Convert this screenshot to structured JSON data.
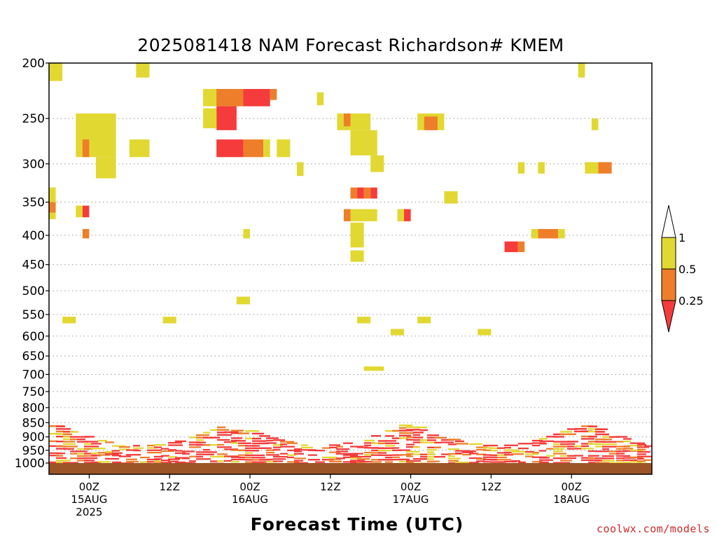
{
  "chart_data": {
    "type": "heatmap",
    "title": "2025081418 NAM Forecast Richardson# KMEM",
    "xlabel": "Forecast Time (UTC)",
    "ylabel": "",
    "y_scale": "log-pressure (inverted)",
    "ylim_hpa": [
      1000,
      200
    ],
    "y_ticks": [
      200,
      250,
      300,
      350,
      400,
      450,
      500,
      550,
      600,
      650,
      700,
      750,
      800,
      850,
      900,
      950,
      1000
    ],
    "x_ticks": [
      {
        "time": "2025-08-15T00Z",
        "label1": "00Z",
        "label2": "15AUG",
        "label3": "2025"
      },
      {
        "time": "2025-08-15T12Z",
        "label1": "12Z",
        "label2": "",
        "label3": ""
      },
      {
        "time": "2025-08-16T00Z",
        "label1": "00Z",
        "label2": "16AUG",
        "label3": ""
      },
      {
        "time": "2025-08-16T12Z",
        "label1": "12Z",
        "label2": "",
        "label3": ""
      },
      {
        "time": "2025-08-17T00Z",
        "label1": "00Z",
        "label2": "17AUG",
        "label3": ""
      },
      {
        "time": "2025-08-17T12Z",
        "label1": "12Z",
        "label2": "",
        "label3": ""
      },
      {
        "time": "2025-08-18T00Z",
        "label1": "00Z",
        "label2": "18AUG",
        "label3": ""
      }
    ],
    "x_start": "2025-08-14T18Z",
    "x_end": "2025-08-18T12Z",
    "grid": "dotted horizontal lines at pressure ticks",
    "legend": {
      "placement": "right",
      "labels": [
        "1",
        "0.5",
        "0.25"
      ],
      "bins": [
        {
          "range": "0.5-1",
          "color": "#e2d832"
        },
        {
          "range": "0.25-0.5",
          "color": "#ee7e2a"
        },
        {
          "range": "<0.25",
          "color": "#f53b3b"
        }
      ]
    },
    "colors": {
      "low": "#f53b3b",
      "mid": "#ee7e2a",
      "high": "#e2d832",
      "ground": "#9b5527"
    },
    "cells": [
      {
        "t0": "2025-08-14T18Z",
        "t1": "2025-08-14T20Z",
        "p0": 200,
        "p1": 215,
        "bin": "high"
      },
      {
        "t0": "2025-08-15T07Z",
        "t1": "2025-08-15T09Z",
        "p0": 200,
        "p1": 212,
        "bin": "high"
      },
      {
        "t0": "2025-08-15T17Z",
        "t1": "2025-08-15T22Z",
        "p0": 222,
        "p1": 238,
        "bin": "high"
      },
      {
        "t0": "2025-08-15T19Z",
        "t1": "2025-08-15T23Z",
        "p0": 222,
        "p1": 238,
        "bin": "mid"
      },
      {
        "t0": "2025-08-15T23Z",
        "t1": "2025-08-16T03Z",
        "p0": 222,
        "p1": 238,
        "bin": "low"
      },
      {
        "t0": "2025-08-16T03Z",
        "t1": "2025-08-16T04Z",
        "p0": 222,
        "p1": 232,
        "bin": "mid"
      },
      {
        "t0": "2025-08-15T19Z",
        "t1": "2025-08-15T22Z",
        "p0": 238,
        "p1": 262,
        "bin": "low"
      },
      {
        "t0": "2025-08-15T17Z",
        "t1": "2025-08-15T19Z",
        "p0": 240,
        "p1": 260,
        "bin": "high"
      },
      {
        "t0": "2025-08-15T19Z",
        "t1": "2025-08-15T23Z",
        "p0": 272,
        "p1": 292,
        "bin": "low"
      },
      {
        "t0": "2025-08-15T23Z",
        "t1": "2025-08-16T02Z",
        "p0": 272,
        "p1": 292,
        "bin": "mid"
      },
      {
        "t0": "2025-08-16T02Z",
        "t1": "2025-08-16T03Z",
        "p0": 272,
        "p1": 292,
        "bin": "high"
      },
      {
        "t0": "2025-08-16T04Z",
        "t1": "2025-08-16T06Z",
        "p0": 272,
        "p1": 292,
        "bin": "high"
      },
      {
        "t0": "2025-08-16T07Z",
        "t1": "2025-08-16T08Z",
        "p0": 298,
        "p1": 315,
        "bin": "high"
      },
      {
        "t0": "2025-08-16T10Z",
        "t1": "2025-08-16T11Z",
        "p0": 225,
        "p1": 237,
        "bin": "high"
      },
      {
        "t0": "2025-08-14T22Z",
        "t1": "2025-08-15T04Z",
        "p0": 245,
        "p1": 292,
        "bin": "high"
      },
      {
        "t0": "2025-08-14T23Z",
        "t1": "2025-08-15T00Z",
        "p0": 272,
        "p1": 292,
        "bin": "mid"
      },
      {
        "t0": "2025-08-15T01Z",
        "t1": "2025-08-15T04Z",
        "p0": 292,
        "p1": 318,
        "bin": "high"
      },
      {
        "t0": "2025-08-15T06Z",
        "t1": "2025-08-15T09Z",
        "p0": 272,
        "p1": 292,
        "bin": "high"
      },
      {
        "t0": "2025-08-14T18Z",
        "t1": "2025-08-14T19Z",
        "p0": 330,
        "p1": 375,
        "bin": "high"
      },
      {
        "t0": "2025-08-14T18Z",
        "t1": "2025-08-14T19Z",
        "p0": 350,
        "p1": 365,
        "bin": "mid"
      },
      {
        "t0": "2025-08-14T22Z",
        "t1": "2025-08-14T23Z",
        "p0": 355,
        "p1": 372,
        "bin": "high"
      },
      {
        "t0": "2025-08-14T23Z",
        "t1": "2025-08-15T00Z",
        "p0": 355,
        "p1": 372,
        "bin": "low"
      },
      {
        "t0": "2025-08-14T23Z",
        "t1": "2025-08-15T00Z",
        "p0": 390,
        "p1": 405,
        "bin": "mid"
      },
      {
        "t0": "2025-08-15T23Z",
        "t1": "2025-08-16T00Z",
        "p0": 390,
        "p1": 405,
        "bin": "high"
      },
      {
        "t0": "2025-08-16T13Z",
        "t1": "2025-08-16T18Z",
        "p0": 245,
        "p1": 262,
        "bin": "high"
      },
      {
        "t0": "2025-08-16T14Z",
        "t1": "2025-08-16T15Z",
        "p0": 245,
        "p1": 258,
        "bin": "mid"
      },
      {
        "t0": "2025-08-16T15Z",
        "t1": "2025-08-16T19Z",
        "p0": 262,
        "p1": 290,
        "bin": "high"
      },
      {
        "t0": "2025-08-16T18Z",
        "t1": "2025-08-16T20Z",
        "p0": 290,
        "p1": 310,
        "bin": "high"
      },
      {
        "t0": "2025-08-16T15Z",
        "t1": "2025-08-16T16Z",
        "p0": 330,
        "p1": 345,
        "bin": "mid"
      },
      {
        "t0": "2025-08-16T16Z",
        "t1": "2025-08-16T17Z",
        "p0": 330,
        "p1": 345,
        "bin": "low"
      },
      {
        "t0": "2025-08-16T17Z",
        "t1": "2025-08-16T18Z",
        "p0": 330,
        "p1": 345,
        "bin": "mid"
      },
      {
        "t0": "2025-08-16T18Z",
        "t1": "2025-08-16T19Z",
        "p0": 330,
        "p1": 345,
        "bin": "low"
      },
      {
        "t0": "2025-08-16T14Z",
        "t1": "2025-08-16T15Z",
        "p0": 360,
        "p1": 378,
        "bin": "mid"
      },
      {
        "t0": "2025-08-16T15Z",
        "t1": "2025-08-16T16Z",
        "p0": 360,
        "p1": 378,
        "bin": "high"
      },
      {
        "t0": "2025-08-16T16Z",
        "t1": "2025-08-16T19Z",
        "p0": 360,
        "p1": 378,
        "bin": "high"
      },
      {
        "t0": "2025-08-16T15Z",
        "t1": "2025-08-16T17Z",
        "p0": 380,
        "p1": 420,
        "bin": "high"
      },
      {
        "t0": "2025-08-16T15Z",
        "t1": "2025-08-16T17Z",
        "p0": 425,
        "p1": 445,
        "bin": "high"
      },
      {
        "t0": "2025-08-16T22Z",
        "t1": "2025-08-16T23Z",
        "p0": 360,
        "p1": 378,
        "bin": "high"
      },
      {
        "t0": "2025-08-16T23Z",
        "t1": "2025-08-17T00Z",
        "p0": 360,
        "p1": 378,
        "bin": "low"
      },
      {
        "t0": "2025-08-17T01Z",
        "t1": "2025-08-17T05Z",
        "p0": 245,
        "p1": 262,
        "bin": "high"
      },
      {
        "t0": "2025-08-17T02Z",
        "t1": "2025-08-17T04Z",
        "p0": 248,
        "p1": 262,
        "bin": "mid"
      },
      {
        "t0": "2025-08-17T05Z",
        "t1": "2025-08-17T07Z",
        "p0": 335,
        "p1": 352,
        "bin": "high"
      },
      {
        "t0": "2025-08-17T16Z",
        "t1": "2025-08-17T17Z",
        "p0": 298,
        "p1": 312,
        "bin": "high"
      },
      {
        "t0": "2025-08-17T19Z",
        "t1": "2025-08-17T20Z",
        "p0": 298,
        "p1": 312,
        "bin": "high"
      },
      {
        "t0": "2025-08-18T01Z",
        "t1": "2025-08-18T02Z",
        "p0": 200,
        "p1": 212,
        "bin": "high"
      },
      {
        "t0": "2025-08-18T03Z",
        "t1": "2025-08-18T04Z",
        "p0": 250,
        "p1": 262,
        "bin": "high"
      },
      {
        "t0": "2025-08-18T04Z",
        "t1": "2025-08-18T06Z",
        "p0": 298,
        "p1": 312,
        "bin": "mid"
      },
      {
        "t0": "2025-08-18T02Z",
        "t1": "2025-08-18T04Z",
        "p0": 298,
        "p1": 312,
        "bin": "high"
      },
      {
        "t0": "2025-08-17T19Z",
        "t1": "2025-08-17T22Z",
        "p0": 390,
        "p1": 405,
        "bin": "mid"
      },
      {
        "t0": "2025-08-17T22Z",
        "t1": "2025-08-17T23Z",
        "p0": 390,
        "p1": 405,
        "bin": "high"
      },
      {
        "t0": "2025-08-17T18Z",
        "t1": "2025-08-17T19Z",
        "p0": 390,
        "p1": 405,
        "bin": "high"
      },
      {
        "t0": "2025-08-17T14Z",
        "t1": "2025-08-17T16Z",
        "p0": 410,
        "p1": 428,
        "bin": "low"
      },
      {
        "t0": "2025-08-17T16Z",
        "t1": "2025-08-17T17Z",
        "p0": 410,
        "p1": 428,
        "bin": "mid"
      },
      {
        "t0": "2025-08-14T20Z",
        "t1": "2025-08-14T22Z",
        "p0": 555,
        "p1": 570,
        "bin": "high"
      },
      {
        "t0": "2025-08-15T11Z",
        "t1": "2025-08-15T13Z",
        "p0": 555,
        "p1": 570,
        "bin": "high"
      },
      {
        "t0": "2025-08-15T22Z",
        "t1": "2025-08-16T00Z",
        "p0": 512,
        "p1": 528,
        "bin": "high"
      },
      {
        "t0": "2025-08-16T16Z",
        "t1": "2025-08-16T18Z",
        "p0": 555,
        "p1": 570,
        "bin": "high"
      },
      {
        "t0": "2025-08-16T21Z",
        "t1": "2025-08-16T23Z",
        "p0": 583,
        "p1": 598,
        "bin": "high"
      },
      {
        "t0": "2025-08-17T01Z",
        "t1": "2025-08-17T03Z",
        "p0": 555,
        "p1": 570,
        "bin": "high"
      },
      {
        "t0": "2025-08-17T10Z",
        "t1": "2025-08-17T12Z",
        "p0": 583,
        "p1": 598,
        "bin": "high"
      },
      {
        "t0": "2025-08-16T17Z",
        "t1": "2025-08-16T20Z",
        "p0": 678,
        "p1": 690,
        "bin": "high"
      }
    ]
  },
  "footer": {
    "credit": "coolwx.com/models"
  }
}
